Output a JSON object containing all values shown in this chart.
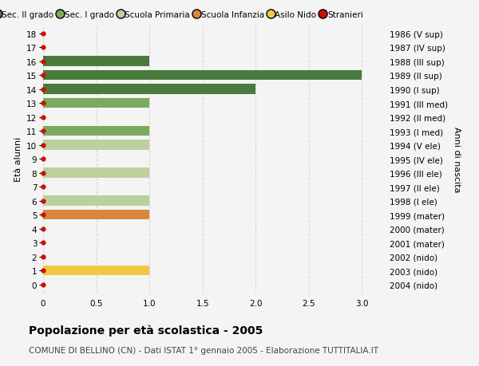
{
  "ages": [
    18,
    17,
    16,
    15,
    14,
    13,
    12,
    11,
    10,
    9,
    8,
    7,
    6,
    5,
    4,
    3,
    2,
    1,
    0
  ],
  "years": [
    "1986 (V sup)",
    "1987 (IV sup)",
    "1988 (III sup)",
    "1989 (II sup)",
    "1990 (I sup)",
    "1991 (III med)",
    "1992 (II med)",
    "1993 (I med)",
    "1994 (V ele)",
    "1995 (IV ele)",
    "1996 (III ele)",
    "1997 (II ele)",
    "1998 (I ele)",
    "1999 (mater)",
    "2000 (mater)",
    "2001 (mater)",
    "2002 (nido)",
    "2003 (nido)",
    "2004 (nido)"
  ],
  "bar_values": [
    0,
    0,
    1,
    3,
    2,
    1,
    0,
    1,
    1,
    0,
    1,
    0,
    1,
    1,
    0,
    0,
    0,
    1,
    0
  ],
  "bar_colors": [
    "#4a7a3e",
    "#4a7a3e",
    "#4a7a3e",
    "#4a7a3e",
    "#4a7a3e",
    "#7aaa5c",
    "#7aaa5c",
    "#7aaa5c",
    "#bcd09e",
    "#bcd09e",
    "#bcd09e",
    "#bcd09e",
    "#bcd09e",
    "#d8883a",
    "#bcd09e",
    "#bcd09e",
    "#f0c844",
    "#f0c844",
    "#f0c844"
  ],
  "dot_color": "#cc1100",
  "background_color": "#f4f4f4",
  "grid_color": "#d8d8d8",
  "title": "Popolazione per età scolastica - 2005",
  "subtitle": "COMUNE DI BELLINO (CN) - Dati ISTAT 1° gennaio 2005 - Elaborazione TUTTITALIA.IT",
  "ylabel_left": "Età alunni",
  "ylabel_right": "Anni di nascita",
  "xlim": [
    0,
    3.2
  ],
  "xticks": [
    0,
    0.5,
    1.0,
    1.5,
    2.0,
    2.5,
    3.0
  ],
  "xtick_labels": [
    "0",
    "0.5",
    "1.0",
    "1.5",
    "2.0",
    "2.5",
    "3.0"
  ],
  "legend_labels": [
    "Sec. II grado",
    "Sec. I grado",
    "Scuola Primaria",
    "Scuola Infanzia",
    "Asilo Nido",
    "Stranieri"
  ],
  "legend_colors": [
    "#4a7a3e",
    "#7aaa5c",
    "#bcd09e",
    "#d8883a",
    "#f0c844",
    "#cc1100"
  ],
  "bar_height": 0.72
}
